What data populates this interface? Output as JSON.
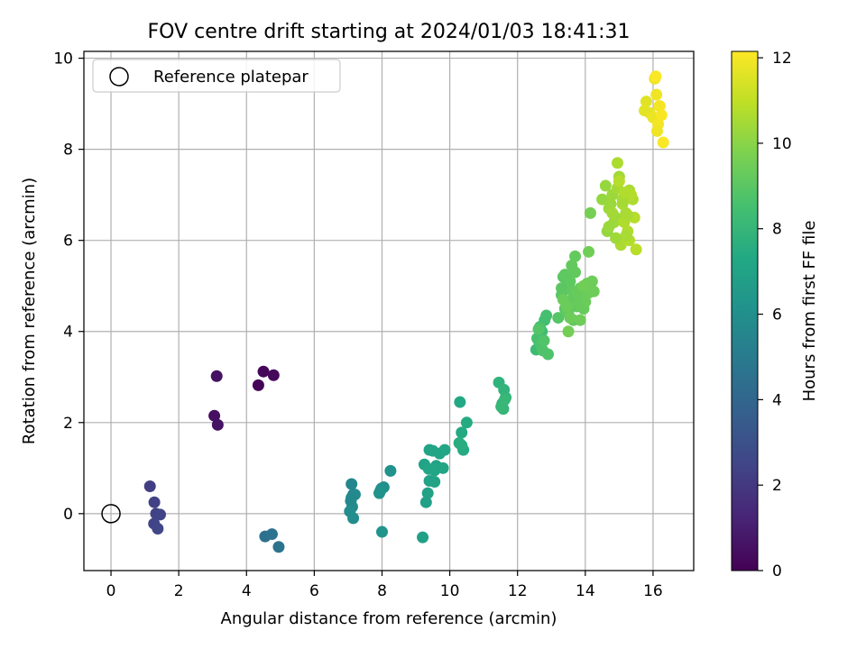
{
  "chart_data": {
    "type": "scatter",
    "title": "FOV centre drift starting at 2024/01/03 18:41:31",
    "xlabel": "Angular distance from reference (arcmin)",
    "ylabel": "Rotation from reference (arcmin)",
    "xlim": [
      -0.8,
      17.2
    ],
    "ylim": [
      -1.25,
      10.15
    ],
    "xticks": [
      "0",
      "2",
      "4",
      "6",
      "8",
      "10",
      "12",
      "14",
      "16"
    ],
    "yticks": [
      "0",
      "2",
      "4",
      "6",
      "8",
      "10"
    ],
    "grid": true,
    "legend": {
      "location": "upper-left",
      "entries": [
        "Reference platepar"
      ]
    },
    "reference_point": {
      "x": 0,
      "y": 0
    },
    "colorbar": {
      "label": "Hours from first FF file",
      "range": [
        0,
        12.15
      ],
      "ticks": [
        "0",
        "2",
        "4",
        "6",
        "8",
        "10",
        "12"
      ],
      "colormap": "viridis"
    },
    "x": [
      4.35,
      4.5,
      4.8,
      3.05,
      3.15,
      3.12,
      1.15,
      1.28,
      1.33,
      1.45,
      1.27,
      1.38,
      4.55,
      4.75,
      4.95,
      7.1,
      7.15,
      7.08,
      7.2,
      7.12,
      7.05,
      7.15,
      7.1,
      7.95,
      8.05,
      7.98,
      8.25,
      7.92,
      8.0,
      9.2,
      9.3,
      9.35,
      9.4,
      9.55,
      9.6,
      9.7,
      9.8,
      9.85,
      9.25,
      9.4,
      9.5,
      9.55,
      9.38,
      10.3,
      10.35,
      10.4,
      10.5,
      10.28,
      10.35,
      11.45,
      11.6,
      11.65,
      11.55,
      11.58,
      11.52,
      11.62,
      12.55,
      12.62,
      12.72,
      12.8,
      12.85,
      12.58,
      12.66,
      12.68,
      12.75,
      12.9,
      12.78,
      12.62,
      13.2,
      13.3,
      13.35,
      13.4,
      13.45,
      13.5,
      13.55,
      13.6,
      13.65,
      13.7,
      13.75,
      13.8,
      13.85,
      13.9,
      13.95,
      14.0,
      14.05,
      14.1,
      14.15,
      14.2,
      14.25,
      13.3,
      13.4,
      13.5,
      13.6,
      13.65,
      13.7,
      13.75,
      13.8,
      13.35,
      13.45,
      13.55,
      13.85,
      13.95,
      14.1,
      13.5,
      14.15,
      14.5,
      14.6,
      14.7,
      14.8,
      14.9,
      15.0,
      15.1,
      15.2,
      15.3,
      15.4,
      14.65,
      14.75,
      14.85,
      14.95,
      15.05,
      15.15,
      15.25,
      15.35,
      15.45,
      15.5,
      14.7,
      14.9,
      15.1,
      15.25,
      14.95,
      15.15,
      15.3,
      15.0,
      14.8,
      15.2,
      15.8,
      15.9,
      16.0,
      16.05,
      16.1,
      16.15,
      16.2,
      16.25,
      16.3,
      16.12,
      16.18,
      15.75,
      16.08
    ],
    "y": [
      2.82,
      3.12,
      3.04,
      2.15,
      1.95,
      3.02,
      0.6,
      0.25,
      0.0,
      -0.02,
      -0.22,
      -0.33,
      -0.5,
      -0.45,
      -0.73,
      0.65,
      0.42,
      0.28,
      0.42,
      0.15,
      0.05,
      -0.1,
      0.35,
      0.5,
      0.58,
      0.55,
      0.94,
      0.45,
      -0.4,
      -0.52,
      0.25,
      0.45,
      0.72,
      0.7,
      1.05,
      1.32,
      1.0,
      1.4,
      1.08,
      1.4,
      1.38,
      0.95,
      0.98,
      2.45,
      1.78,
      1.4,
      2.0,
      1.55,
      1.5,
      2.88,
      2.72,
      2.55,
      2.42,
      2.3,
      2.35,
      2.5,
      3.6,
      3.8,
      4.0,
      4.25,
      4.35,
      3.85,
      4.1,
      3.72,
      3.58,
      3.5,
      3.8,
      4.05,
      4.3,
      4.8,
      5.2,
      4.5,
      5.0,
      4.6,
      5.1,
      4.9,
      4.75,
      5.3,
      4.55,
      4.8,
      4.95,
      4.7,
      4.5,
      4.65,
      5.05,
      4.85,
      4.95,
      5.1,
      4.88,
      4.95,
      5.25,
      4.4,
      5.45,
      4.25,
      5.65,
      4.85,
      4.6,
      4.7,
      4.55,
      4.3,
      4.25,
      5.0,
      5.75,
      4.0,
      6.6,
      6.9,
      7.2,
      6.7,
      7.0,
      6.5,
      7.4,
      6.8,
      6.6,
      7.1,
      6.9,
      6.2,
      6.8,
      6.4,
      7.15,
      5.9,
      6.4,
      6.2,
      7.0,
      6.5,
      5.8,
      6.3,
      6.05,
      6.9,
      6.55,
      7.7,
      7.05,
      6.0,
      7.3,
      6.6,
      6.1,
      9.05,
      8.8,
      8.7,
      9.55,
      9.2,
      8.55,
      8.95,
      8.75,
      8.15,
      8.4,
      8.95,
      8.85,
      9.6
    ],
    "hours": [
      0.15,
      0.2,
      0.25,
      0.5,
      0.6,
      0.55,
      2.2,
      2.3,
      2.35,
      2.4,
      2.45,
      2.5,
      4.5,
      4.55,
      4.6,
      5.6,
      5.65,
      5.7,
      5.75,
      5.8,
      5.85,
      5.9,
      5.7,
      6.0,
      6.05,
      6.1,
      6.15,
      6.2,
      6.25,
      6.8,
      6.85,
      6.9,
      6.95,
      7.0,
      7.05,
      7.1,
      7.15,
      7.2,
      7.0,
      7.05,
      7.1,
      7.15,
      7.2,
      7.3,
      7.35,
      7.4,
      7.45,
      7.5,
      7.55,
      7.8,
      7.85,
      7.9,
      7.95,
      8.0,
      8.05,
      8.1,
      8.3,
      8.35,
      8.4,
      8.45,
      8.5,
      8.55,
      8.6,
      8.65,
      8.7,
      8.75,
      8.8,
      8.85,
      8.9,
      8.95,
      9.0,
      9.0,
      9.05,
      9.1,
      9.1,
      9.15,
      9.15,
      9.2,
      9.2,
      9.25,
      9.25,
      9.3,
      9.3,
      9.35,
      9.35,
      9.4,
      9.4,
      9.45,
      9.45,
      9.05,
      9.1,
      9.15,
      9.2,
      9.2,
      9.25,
      9.3,
      9.3,
      9.35,
      9.4,
      9.4,
      9.45,
      9.5,
      9.5,
      9.55,
      9.6,
      10.2,
      10.25,
      10.3,
      10.35,
      10.4,
      10.45,
      10.5,
      10.55,
      10.6,
      10.65,
      10.2,
      10.3,
      10.4,
      10.5,
      10.6,
      10.7,
      10.7,
      10.75,
      10.8,
      10.85,
      10.3,
      10.4,
      10.5,
      10.6,
      10.65,
      10.7,
      10.75,
      10.8,
      10.45,
      10.55,
      11.6,
      11.7,
      11.8,
      11.85,
      11.9,
      11.95,
      12.0,
      12.05,
      12.1,
      11.9,
      12.0,
      11.65,
      12.1
    ]
  }
}
